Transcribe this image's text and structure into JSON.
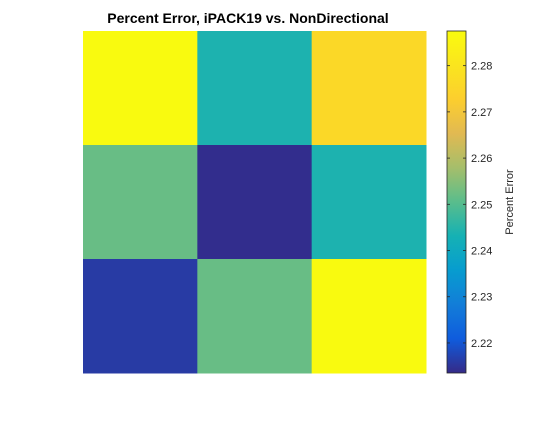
{
  "chart_data": {
    "type": "heatmap",
    "title": "Percent Error, iPACK19 vs. NonDirectional",
    "xlabel": "",
    "ylabel": "",
    "grid": false,
    "rows": 3,
    "cols": 3,
    "values": [
      [
        2.287,
        2.244,
        2.276
      ],
      [
        2.252,
        2.214,
        2.244
      ],
      [
        2.216,
        2.252,
        2.287
      ]
    ],
    "colorbar": {
      "label": "Percent Error",
      "limits": [
        2.2135,
        2.2875
      ],
      "ticks": [
        2.22,
        2.23,
        2.24,
        2.25,
        2.26,
        2.27,
        2.28
      ],
      "tick_labels": [
        "2.22",
        "2.23",
        "2.24",
        "2.25",
        "2.26",
        "2.27",
        "2.28"
      ],
      "colormap": "parula",
      "placement": "right"
    }
  }
}
